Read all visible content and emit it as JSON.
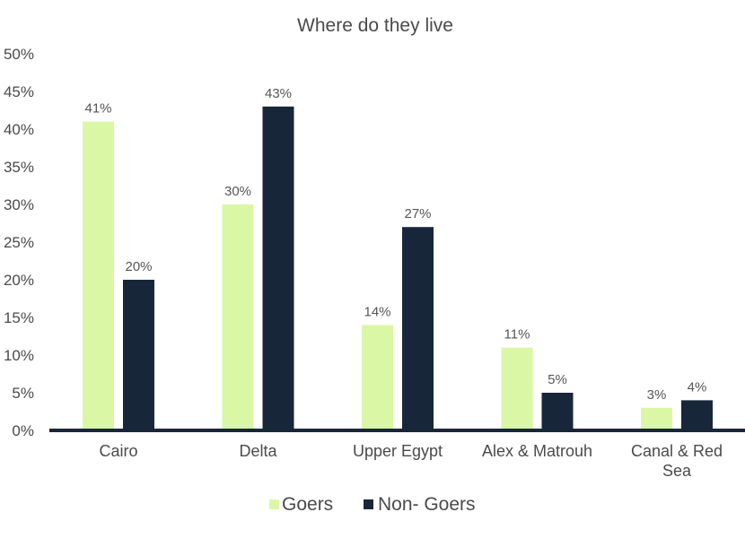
{
  "chart_data": {
    "type": "bar",
    "title": "Where do they live",
    "categories": [
      [
        "Cairo"
      ],
      [
        "Delta"
      ],
      [
        "Upper Egypt"
      ],
      [
        "Alex & Matrouh"
      ],
      [
        "Canal & Red",
        "Sea"
      ]
    ],
    "series": [
      {
        "name": "Goers",
        "color": "#daf7a6",
        "values": [
          41,
          30,
          14,
          11,
          3
        ],
        "labels": [
          "41%",
          "30%",
          "14%",
          "11%",
          "3%"
        ]
      },
      {
        "name": "Non- Goers",
        "color": "#18263a",
        "values": [
          20,
          43,
          27,
          5,
          4
        ],
        "labels": [
          "20%",
          "43%",
          "27%",
          "5%",
          "4%"
        ]
      }
    ],
    "ylim": [
      0,
      50
    ],
    "yticks": [
      0,
      5,
      10,
      15,
      20,
      25,
      30,
      35,
      40,
      45,
      50
    ],
    "ytick_labels": [
      "0%",
      "5%",
      "10%",
      "15%",
      "20%",
      "25%",
      "30%",
      "35%",
      "40%",
      "45%",
      "50%"
    ],
    "grid": false,
    "legend_position": "bottom-center"
  }
}
